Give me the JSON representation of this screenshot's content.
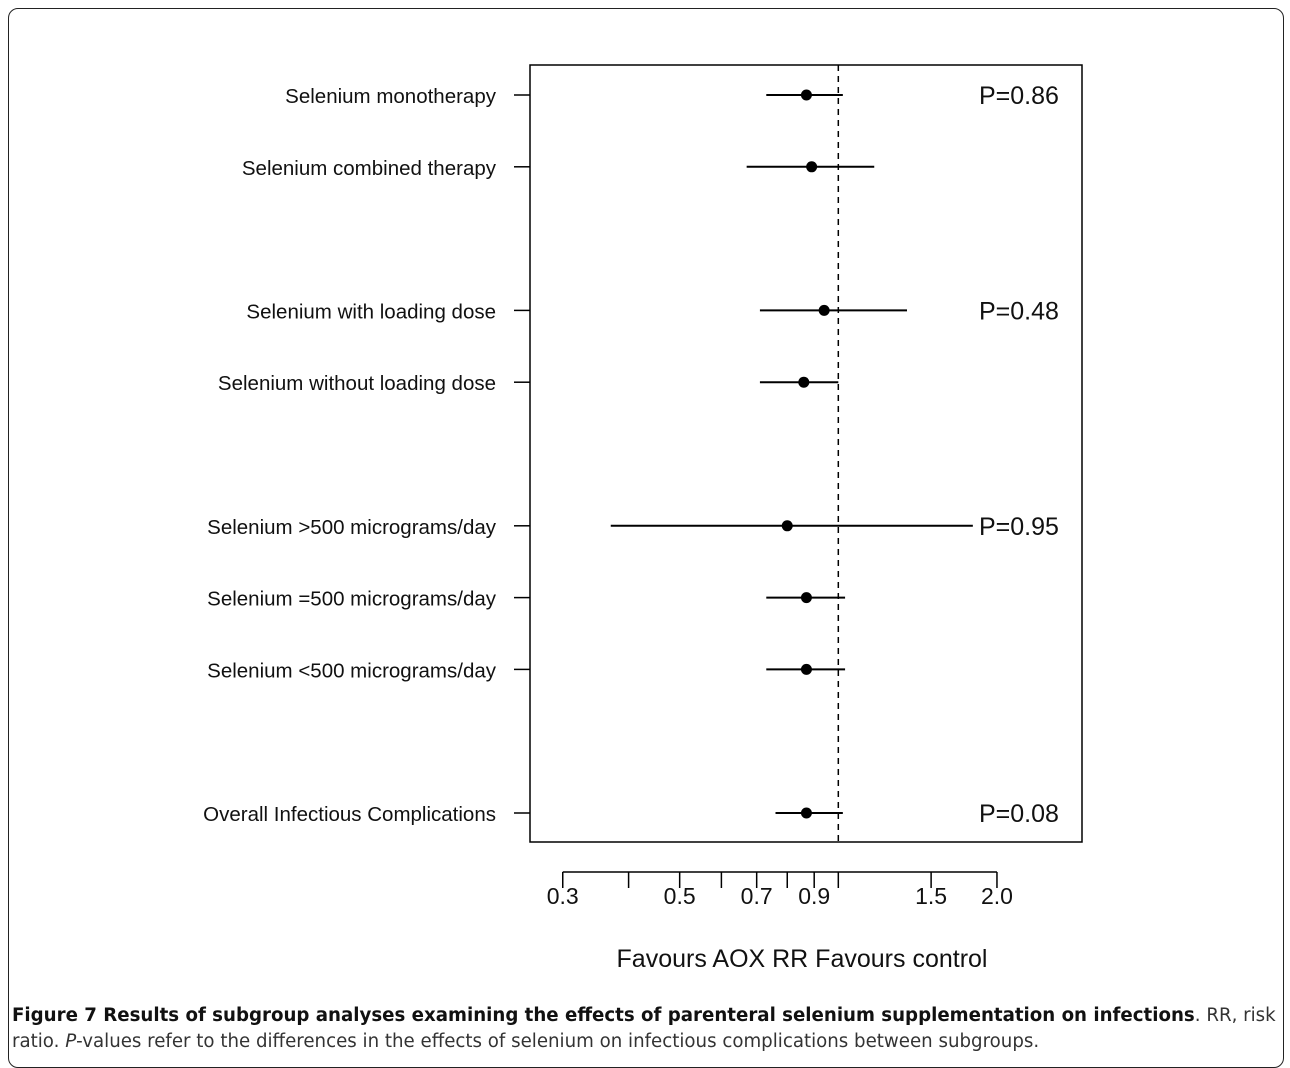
{
  "chart_data": {
    "type": "forest",
    "x_scale": "log",
    "xlim": [
      0.26,
      2.9
    ],
    "reference_line": 1.0,
    "xticks": [
      0.3,
      0.4,
      0.5,
      0.6,
      0.7,
      0.8,
      0.9,
      1.0,
      1.5,
      2.0
    ],
    "xtick_labels": [
      {
        "value": 0.3,
        "label": "0.3"
      },
      {
        "value": 0.5,
        "label": "0.5"
      },
      {
        "value": 0.7,
        "label": "0.7"
      },
      {
        "value": 0.9,
        "label": "0.9"
      },
      {
        "value": 1.5,
        "label": "1.5"
      },
      {
        "value": 2.0,
        "label": "2.0"
      }
    ],
    "xlabel": "Favours AOX   RR  Favours control",
    "rows": [
      {
        "label": "Selenium monotherapy",
        "position": 1,
        "rr": 0.87,
        "ci": [
          0.73,
          1.02
        ]
      },
      {
        "label": "Selenium combined therapy",
        "position": 2,
        "rr": 0.89,
        "ci": [
          0.67,
          1.17
        ]
      },
      {
        "label": "Selenium with loading dose",
        "position": 4,
        "rr": 0.94,
        "ci": [
          0.71,
          1.35
        ]
      },
      {
        "label": "Selenium without loading dose",
        "position": 5,
        "rr": 0.86,
        "ci": [
          0.71,
          1.0
        ]
      },
      {
        "label": "Selenium >500 micrograms/day",
        "position": 7,
        "rr": 0.8,
        "ci": [
          0.37,
          1.8
        ]
      },
      {
        "label": "Selenium =500 micrograms/day",
        "position": 8,
        "rr": 0.87,
        "ci": [
          0.73,
          1.03
        ]
      },
      {
        "label": "Selenium <500 micrograms/day",
        "position": 9,
        "rr": 0.87,
        "ci": [
          0.73,
          1.03
        ]
      },
      {
        "label": "Overall Infectious Complications",
        "position": 11,
        "rr": 0.87,
        "ci": [
          0.76,
          1.02
        ]
      }
    ],
    "p_values": [
      {
        "label": "P=0.86",
        "position": 1
      },
      {
        "label": "P=0.48",
        "position": 4
      },
      {
        "label": "P=0.95",
        "position": 7
      },
      {
        "label": "P=0.08",
        "position": 11
      }
    ]
  },
  "caption": {
    "bold": "Figure 7 Results of subgroup analyses examining the effects of parenteral selenium supplementation on infections",
    "text1": ". RR, risk ratio. ",
    "italic": "P",
    "text2": "-values refer to the differences in the effects of selenium on infectious complications between subgroups."
  }
}
